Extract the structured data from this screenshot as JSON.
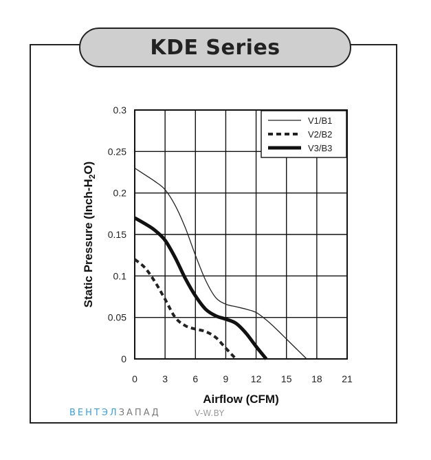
{
  "title": "KDE Series",
  "watermark": {
    "brand_part1": "ВЕНТЭЛ",
    "brand_part2": "ЗАПАД",
    "site": "V-W.BY"
  },
  "chart_data": {
    "type": "line",
    "xlabel": "Airflow (CFM)",
    "ylabel_pre": "Static Pressure (Inch-H",
    "ylabel_sub": "2",
    "ylabel_post": "O)",
    "xlim": [
      0,
      21
    ],
    "ylim": [
      0,
      0.3
    ],
    "xticks": [
      0,
      3,
      6,
      9,
      12,
      15,
      18,
      21
    ],
    "yticks": [
      0,
      0.05,
      0.1,
      0.15,
      0.2,
      0.25,
      0.3
    ],
    "xtick_labels": [
      "0",
      "3",
      "6",
      "9",
      "12",
      "15",
      "18",
      "21"
    ],
    "ytick_labels": [
      "0",
      "0.05",
      "0.1",
      "0.15",
      "0.2",
      "0.25",
      "0.3"
    ],
    "grid": true,
    "legend_position": "top-right",
    "series": [
      {
        "name": "V1/B1",
        "style": "thin",
        "color": "#222222",
        "x": [
          0,
          1,
          2,
          3,
          4,
          5,
          6,
          7,
          8,
          9,
          10,
          11,
          12,
          13,
          14,
          15,
          16,
          17
        ],
        "y": [
          0.23,
          0.222,
          0.214,
          0.204,
          0.185,
          0.158,
          0.125,
          0.095,
          0.074,
          0.066,
          0.063,
          0.06,
          0.056,
          0.047,
          0.036,
          0.024,
          0.012,
          0.0
        ]
      },
      {
        "name": "V2/B2",
        "style": "dashed",
        "color": "#222222",
        "x": [
          0,
          1,
          2,
          3,
          4,
          5,
          6,
          7,
          8,
          9,
          10
        ],
        "y": [
          0.12,
          0.11,
          0.093,
          0.072,
          0.05,
          0.04,
          0.036,
          0.033,
          0.026,
          0.013,
          0.0
        ]
      },
      {
        "name": "V3/B3",
        "style": "bold",
        "color": "#111111",
        "x": [
          0,
          1,
          2,
          3,
          4,
          5,
          6,
          7,
          8,
          9,
          10,
          11,
          12,
          13
        ],
        "y": [
          0.17,
          0.163,
          0.155,
          0.143,
          0.122,
          0.097,
          0.076,
          0.06,
          0.052,
          0.048,
          0.043,
          0.031,
          0.015,
          0.0
        ]
      }
    ]
  }
}
